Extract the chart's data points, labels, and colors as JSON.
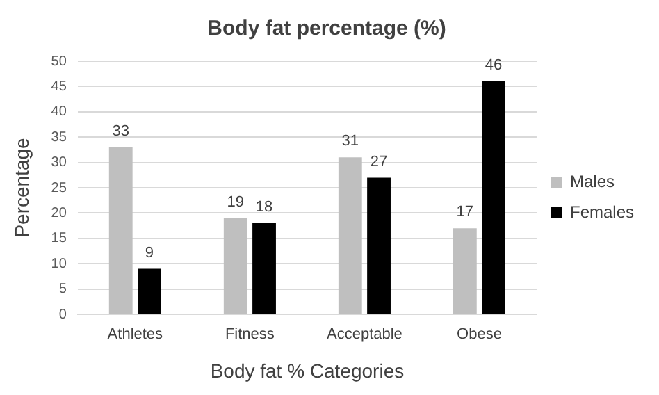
{
  "chart_data": {
    "type": "bar",
    "title": "Body fat percentage (%)",
    "xlabel": "Body fat % Categories",
    "ylabel": "Percentage",
    "categories": [
      "Athletes",
      "Fitness",
      "Acceptable",
      "Obese"
    ],
    "series": [
      {
        "name": "Males",
        "color": "#bfbfbf",
        "values": [
          33,
          19,
          31,
          17
        ]
      },
      {
        "name": "Females",
        "color": "#000000",
        "values": [
          9,
          18,
          27,
          46
        ]
      }
    ],
    "ylim": [
      0,
      50
    ],
    "yticks": [
      0,
      5,
      10,
      15,
      20,
      25,
      30,
      35,
      40,
      45,
      50
    ],
    "grid": "y",
    "legend": "right",
    "data_labels": true
  }
}
